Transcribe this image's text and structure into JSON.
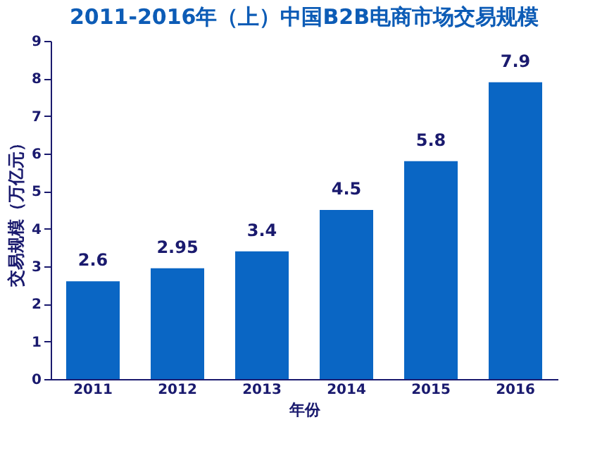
{
  "chart_data": {
    "type": "bar",
    "title": "2011-2016年（上）中国B2B电商市场交易规模",
    "xlabel": "年份",
    "ylabel": "交易规模（万亿元）",
    "categories": [
      "2011",
      "2012",
      "2013",
      "2014",
      "2015",
      "2016"
    ],
    "values": [
      2.6,
      2.95,
      3.4,
      4.5,
      5.8,
      7.9
    ],
    "color": "#0a66c4",
    "data_labels": true,
    "ylim": [
      0,
      9
    ],
    "yticks": [
      0,
      1,
      2,
      3,
      4,
      5,
      6,
      7,
      8,
      9
    ],
    "grid": false
  }
}
